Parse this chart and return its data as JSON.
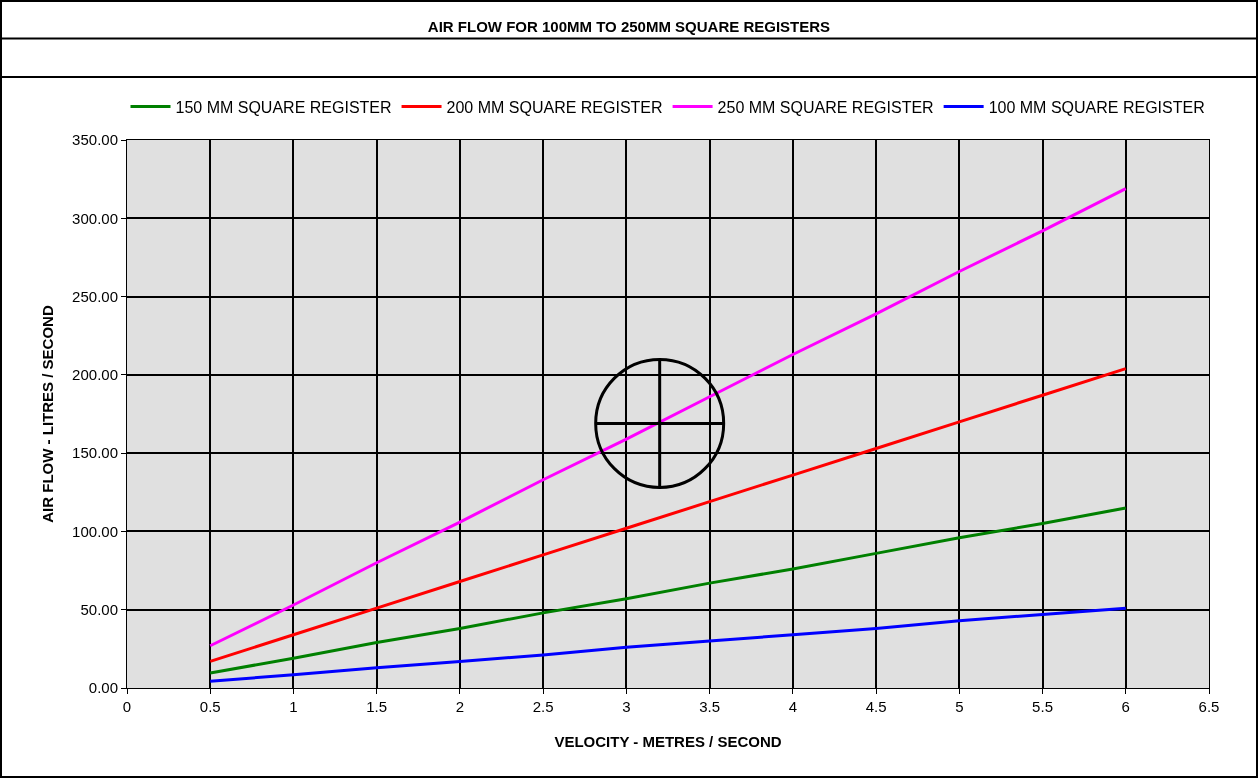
{
  "chart_data": {
    "type": "line",
    "title": "AIR FLOW FOR 100MM TO 250MM SQUARE REGISTERS",
    "xlabel": "VELOCITY - METRES / SECOND",
    "ylabel": "AIR FLOW - LITRES / SECOND",
    "x": [
      0.5,
      1,
      1.5,
      2,
      2.5,
      3,
      3.5,
      4,
      4.5,
      5,
      5.5,
      6
    ],
    "series": [
      {
        "name": "150 MM SQUARE REGISTER",
        "color": "#008000",
        "values": [
          9.6,
          19,
          29,
          38,
          48,
          57,
          67,
          76,
          86,
          96,
          105,
          115
        ]
      },
      {
        "name": "200 MM SQUARE REGISTER",
        "color": "#ff0000",
        "values": [
          17,
          34,
          51,
          68,
          85,
          102,
          119,
          136,
          153,
          170,
          187,
          204
        ]
      },
      {
        "name": "250 MM SQUARE REGISTER",
        "color": "#ff00ff",
        "values": [
          27,
          53,
          80,
          106,
          133,
          159,
          186,
          213,
          239,
          266,
          292,
          319
        ]
      },
      {
        "name": "100 MM SQUARE REGISTER",
        "color": "#0000ff",
        "values": [
          4.3,
          8.5,
          13,
          17,
          21,
          26,
          30,
          34,
          38,
          43,
          47,
          51
        ]
      }
    ],
    "xlim": [
      0,
      6.5
    ],
    "xticks": [
      0,
      0.5,
      1,
      1.5,
      2,
      2.5,
      3,
      3.5,
      4,
      4.5,
      5,
      5.5,
      6,
      6.5
    ],
    "ylim": [
      0,
      350
    ],
    "yticks": [
      {
        "value": 0,
        "label": "0.00"
      },
      {
        "value": 50,
        "label": "50.00"
      },
      {
        "value": 100,
        "label": "100.00"
      },
      {
        "value": 150,
        "label": "150.00"
      },
      {
        "value": 200,
        "label": "200.00"
      },
      {
        "value": 250,
        "label": "250.00"
      },
      {
        "value": 300,
        "label": "300.00"
      },
      {
        "value": 350,
        "label": "350.00"
      }
    ],
    "grid": true,
    "legend": "top",
    "marker": "none",
    "line_style": "solid"
  }
}
